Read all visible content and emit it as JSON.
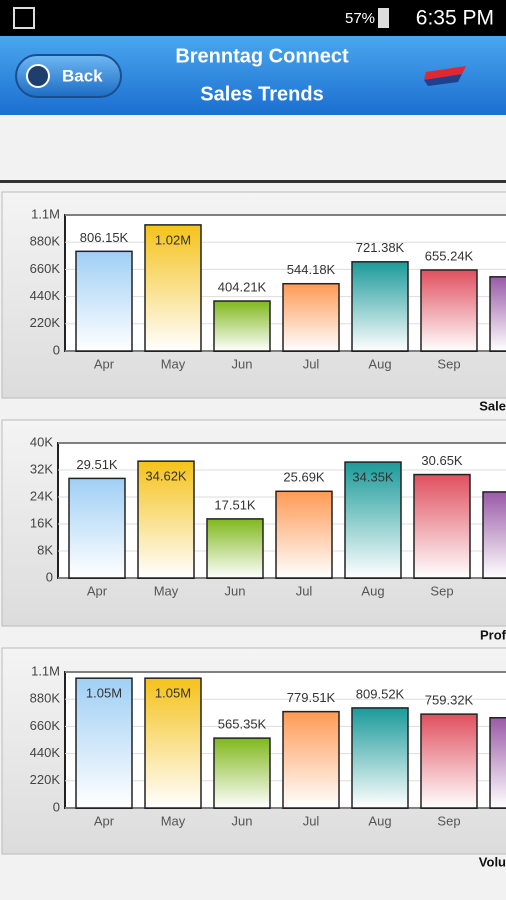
{
  "status_bar": {
    "battery": "57%",
    "time": "6:35 PM"
  },
  "header": {
    "back": "Back",
    "title": "Brenntag Connect",
    "subtitle": "Sales Trends"
  },
  "chart_data": [
    {
      "type": "bar",
      "xlabel": "Sale",
      "categories": [
        "Apr",
        "May",
        "Jun",
        "Jul",
        "Aug",
        "Sep",
        null
      ],
      "values": [
        806150,
        1020000,
        404210,
        544180,
        721380,
        655240,
        600000
      ],
      "value_labels": [
        "806.15K",
        "1.02M",
        "404.21K",
        "544.18K",
        "721.38K",
        "655.24K",
        null
      ],
      "colors": [
        "#9fcff5",
        "#f5c21a",
        "#80b81c",
        "#ff9a55",
        "#1b9a9a",
        "#e0505f",
        "#9a5aa8"
      ],
      "ylim": [
        0,
        1100000
      ],
      "yticks": [
        0,
        {
          "value": 220000,
          "label": "220K"
        },
        {
          "value": 440000,
          "label": "440K"
        },
        {
          "value": 660000,
          "label": "660K"
        },
        {
          "value": 880000,
          "label": "880K"
        },
        {
          "value": 1100000,
          "label": "1.1M"
        }
      ]
    },
    {
      "type": "bar",
      "xlabel": "Prof",
      "categories": [
        "Apr",
        "May",
        "Jun",
        "Jul",
        "Aug",
        "Sep",
        null
      ],
      "values": [
        29510,
        34620,
        17510,
        25690,
        34350,
        30650,
        25500
      ],
      "value_labels": [
        "29.51K",
        "34.62K",
        "17.51K",
        "25.69K",
        "34.35K",
        "30.65K",
        null
      ],
      "colors": [
        "#9fcff5",
        "#f5c21a",
        "#80b81c",
        "#ff9a55",
        "#1b9a9a",
        "#e0505f",
        "#9a5aa8"
      ],
      "ylim": [
        0,
        40000
      ],
      "yticks": [
        0,
        {
          "value": 8000,
          "label": "8K"
        },
        {
          "value": 16000,
          "label": "16K"
        },
        {
          "value": 24000,
          "label": "24K"
        },
        {
          "value": 32000,
          "label": "32K"
        },
        {
          "value": 40000,
          "label": "40K"
        }
      ]
    },
    {
      "type": "bar",
      "xlabel": "Volu",
      "categories": [
        "Apr",
        "May",
        "Jun",
        "Jul",
        "Aug",
        "Sep",
        null
      ],
      "values": [
        1050000,
        1050000,
        565350,
        779510,
        809520,
        759320,
        730000
      ],
      "value_labels": [
        "1.05M",
        "1.05M",
        "565.35K",
        "779.51K",
        "809.52K",
        "759.32K",
        null
      ],
      "colors": [
        "#9fcff5",
        "#f5c21a",
        "#80b81c",
        "#ff9a55",
        "#1b9a9a",
        "#e0505f",
        "#9a5aa8"
      ],
      "ylim": [
        0,
        1100000
      ],
      "yticks": [
        0,
        {
          "value": 220000,
          "label": "220K"
        },
        {
          "value": 440000,
          "label": "440K"
        },
        {
          "value": 660000,
          "label": "660K"
        },
        {
          "value": 880000,
          "label": "880K"
        },
        {
          "value": 1100000,
          "label": "1.1M"
        }
      ]
    }
  ]
}
